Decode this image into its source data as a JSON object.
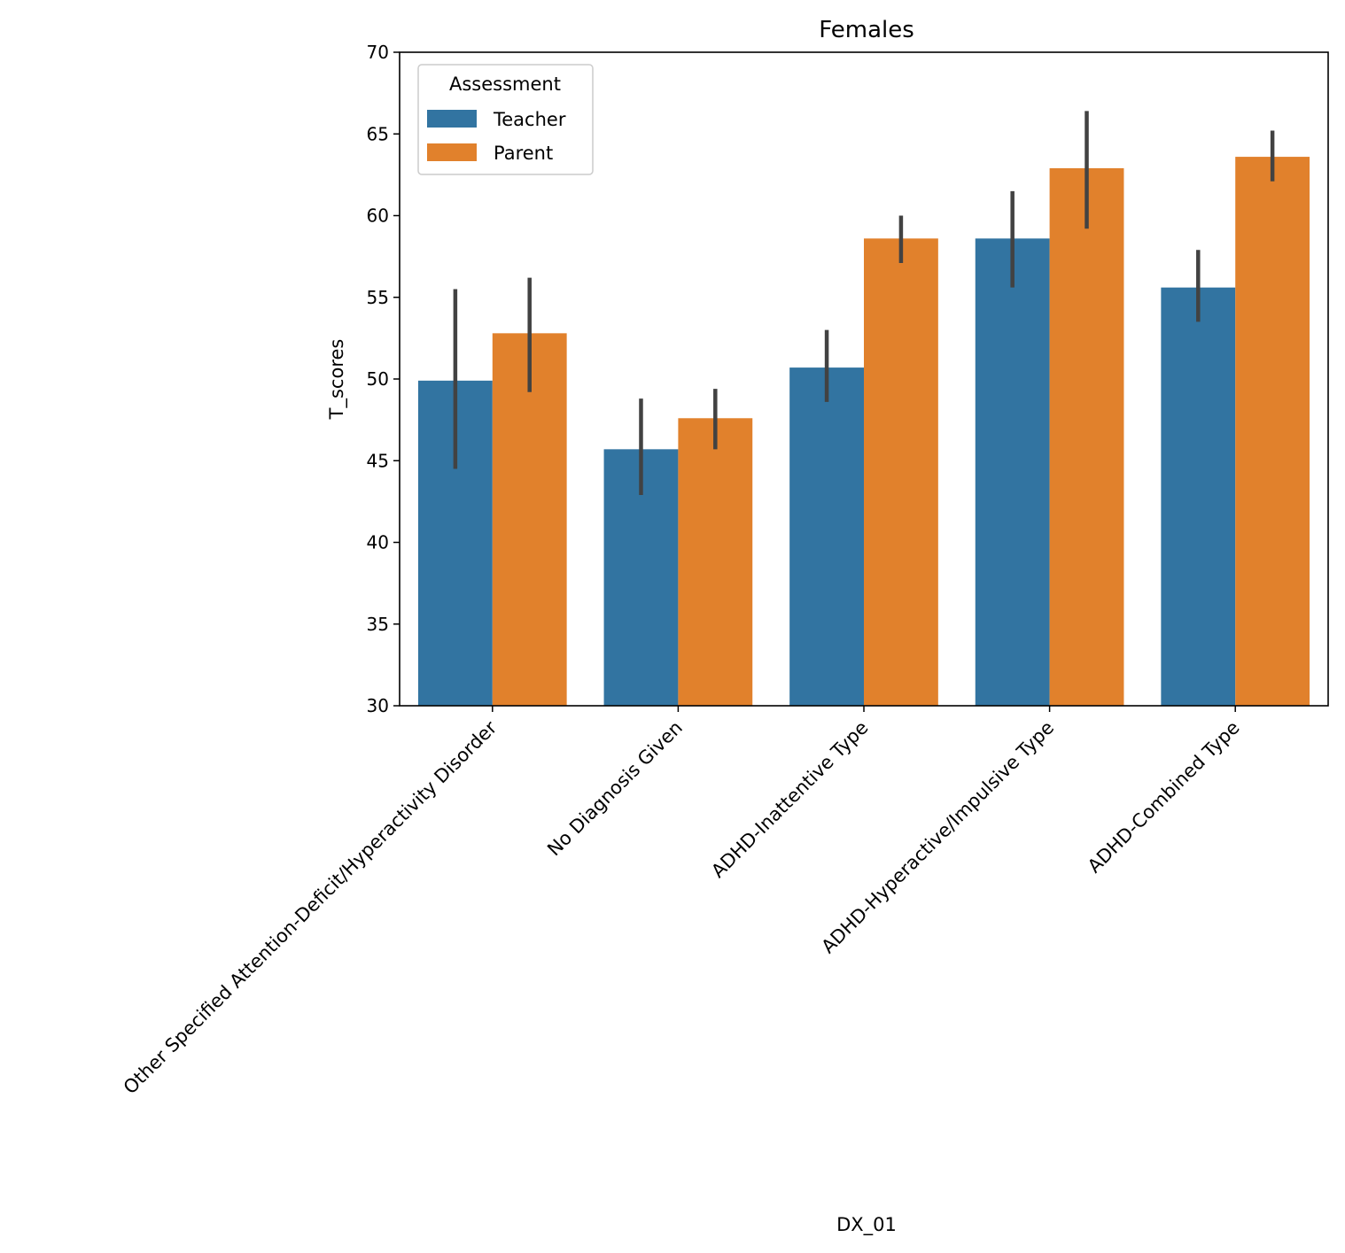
{
  "chart_data": {
    "type": "bar",
    "title": "Females",
    "xlabel": "DX_01",
    "ylabel": "T_scores",
    "ylim": [
      30,
      70
    ],
    "yticks": [
      "30",
      "35",
      "40",
      "45",
      "50",
      "55",
      "60",
      "65",
      "70"
    ],
    "categories": [
      "Other Specified Attention-Deficit/Hyperactivity Disorder",
      "No Diagnosis Given",
      "ADHD-Inattentive Type",
      "ADHD-Hyperactive/Impulsive Type",
      "ADHD-Combined Type"
    ],
    "legend": {
      "title": "Assessment",
      "placement": "upper-left"
    },
    "series": [
      {
        "name": "Teacher",
        "color": "#3274a1",
        "values": [
          49.9,
          45.7,
          50.7,
          58.6,
          55.6
        ],
        "ci_low": [
          44.5,
          42.9,
          48.6,
          55.6,
          53.5
        ],
        "ci_high": [
          55.5,
          48.8,
          53.0,
          61.5,
          57.9
        ]
      },
      {
        "name": "Parent",
        "color": "#e1812c",
        "values": [
          52.8,
          47.6,
          58.6,
          62.9,
          63.6
        ],
        "ci_low": [
          49.2,
          45.7,
          57.1,
          59.2,
          62.1
        ],
        "ci_high": [
          56.2,
          49.4,
          60.0,
          66.4,
          65.2
        ]
      }
    ]
  }
}
